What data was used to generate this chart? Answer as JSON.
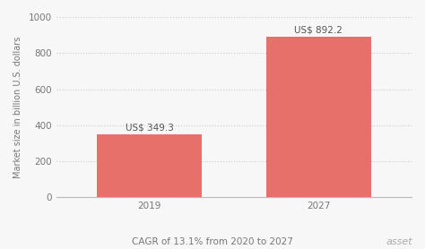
{
  "categories": [
    "2019",
    "2027"
  ],
  "values": [
    349.3,
    892.2
  ],
  "bar_color": "#e8706a",
  "bar_labels": [
    "US$ 349.3",
    "US$ 892.2"
  ],
  "ylabel": "Market size in billion U.S. dollars",
  "ylim": [
    0,
    1000
  ],
  "yticks": [
    0,
    200,
    400,
    600,
    800,
    1000
  ],
  "xlabel_note": "CAGR of 13.1% from 2020 to 2027",
  "background_color": "#f7f7f7",
  "bar_width": 0.62,
  "grid_color": "#cccccc",
  "label_fontsize": 7.5,
  "tick_fontsize": 7.5,
  "ylabel_fontsize": 7,
  "note_fontsize": 7.5,
  "watermark": "asset",
  "x_positions": [
    0,
    1
  ],
  "xlim": [
    -0.55,
    1.55
  ]
}
